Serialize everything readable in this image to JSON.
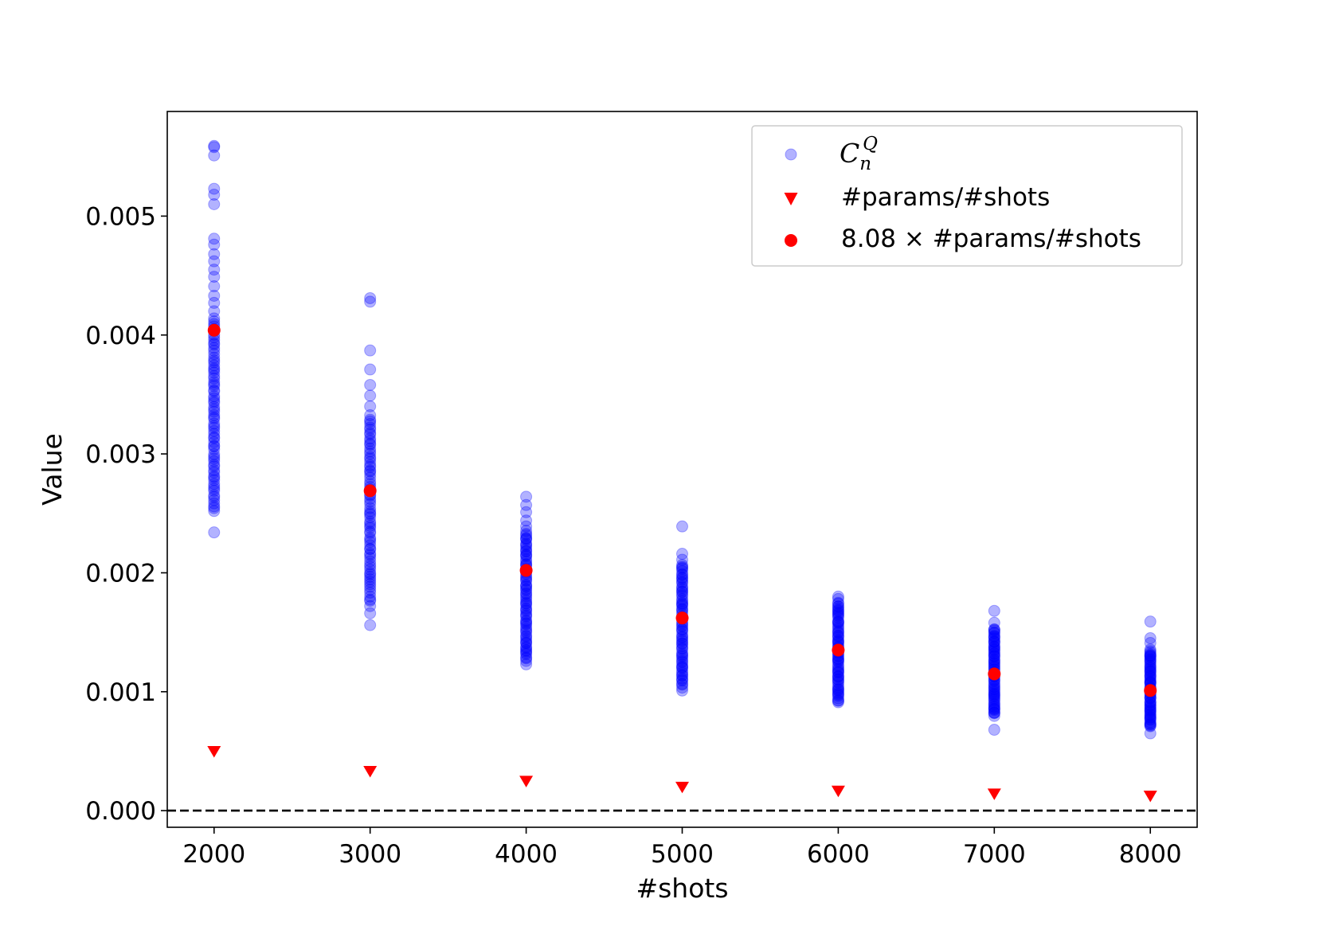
{
  "chart_data": {
    "type": "scatter",
    "xlabel": "#shots",
    "ylabel": "Value",
    "xlim": [
      1700,
      8300
    ],
    "ylim": [
      -0.00014,
      0.00588
    ],
    "x_ticks": [
      2000,
      3000,
      4000,
      5000,
      6000,
      7000,
      8000
    ],
    "y_ticks": [
      0.0,
      0.001,
      0.002,
      0.003,
      0.004,
      0.005
    ],
    "x_tick_labels": [
      "2000",
      "3000",
      "4000",
      "5000",
      "6000",
      "7000",
      "8000"
    ],
    "y_tick_labels": [
      "0.000",
      "0.001",
      "0.002",
      "0.003",
      "0.004",
      "0.005"
    ],
    "reference_line": {
      "y": 0.0,
      "style": "dashed",
      "color": "#000000"
    },
    "legend": {
      "placement": "top-right",
      "entries": [
        {
          "base": "C",
          "sub": "n",
          "sup": "Q",
          "marker": "circle",
          "color": "#0000ff",
          "alpha": 0.3
        },
        {
          "label": "#params/#shots",
          "marker": "triangle-down",
          "color": "#ff0000"
        },
        {
          "label": "8.08 × #params/#shots",
          "marker": "circle",
          "color": "#ff0000"
        }
      ]
    },
    "series": [
      {
        "name": "C_n^Q",
        "marker": "circle",
        "color": "#0000ff",
        "alpha": 0.3,
        "groups": [
          {
            "x": 2000,
            "outliers": [
              0.00234,
              0.0051,
              0.00518,
              0.00523,
              0.00551,
              0.00558,
              0.00559,
              0.00481,
              0.00476,
              0.00468,
              0.00462,
              0.00455,
              0.00449,
              0.00441,
              0.00433,
              0.00427,
              0.0042,
              0.00414
            ],
            "dense_min": 0.00252,
            "dense_max": 0.00412
          },
          {
            "x": 3000,
            "outliers": [
              0.00156,
              0.00166,
              0.00172,
              0.0034,
              0.00349,
              0.00358,
              0.00371,
              0.00387,
              0.00428,
              0.00431
            ],
            "dense_min": 0.00176,
            "dense_max": 0.00332
          },
          {
            "x": 4000,
            "outliers": [
              0.00123,
              0.00239,
              0.00244,
              0.00251,
              0.00257,
              0.00264
            ],
            "dense_min": 0.00126,
            "dense_max": 0.00235
          },
          {
            "x": 5000,
            "outliers": [
              0.00101,
              0.00239,
              0.00211,
              0.00216
            ],
            "dense_min": 0.00104,
            "dense_max": 0.00207
          },
          {
            "x": 6000,
            "outliers": [
              0.0018,
              0.00178
            ],
            "dense_min": 0.00091,
            "dense_max": 0.00175
          },
          {
            "x": 7000,
            "outliers": [
              0.00068,
              0.00168,
              0.00158
            ],
            "dense_min": 0.0008,
            "dense_max": 0.00153
          },
          {
            "x": 8000,
            "outliers": [
              0.00065,
              0.00159,
              0.00145,
              0.00141
            ],
            "dense_min": 0.0007,
            "dense_max": 0.00135
          }
        ]
      },
      {
        "name": "#params/#shots",
        "marker": "triangle-down",
        "color": "#ff0000",
        "x": [
          2000,
          3000,
          4000,
          5000,
          6000,
          7000,
          8000
        ],
        "y": [
          0.0005,
          0.000333,
          0.00025,
          0.0002,
          0.000167,
          0.000143,
          0.000125
        ]
      },
      {
        "name": "8.08 × #params/#shots",
        "marker": "circle",
        "color": "#ff0000",
        "x": [
          2000,
          3000,
          4000,
          5000,
          6000,
          7000,
          8000
        ],
        "y": [
          0.00404,
          0.00269,
          0.00202,
          0.00162,
          0.00135,
          0.00115,
          0.00101
        ]
      }
    ]
  }
}
